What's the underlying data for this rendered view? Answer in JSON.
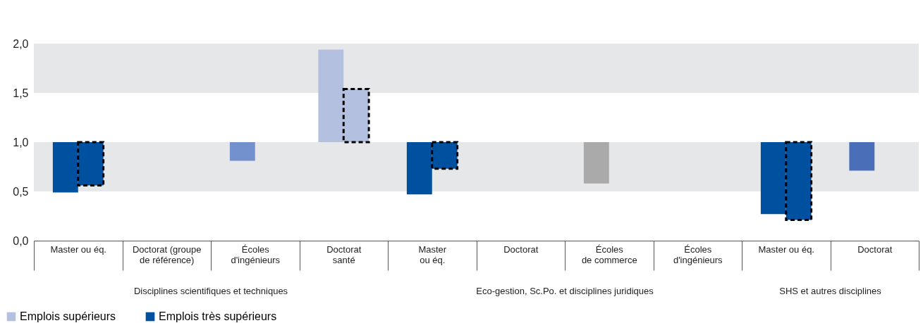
{
  "chart_data": {
    "type": "bar",
    "categories": [
      "Master ou éq.",
      "Doctorat (groupe\nde référence)",
      "Écoles\nd'ingénieurs",
      "Doctorat\nsanté",
      "Master\nou éq.",
      "Doctorat",
      "Écoles\nde commerce",
      "Écoles\nd'ingénieurs",
      "Master ou éq.",
      "Doctorat"
    ],
    "series": [
      {
        "name": "Emplois supérieurs",
        "color": "#b4c0e0",
        "base": [
          1,
          null,
          1,
          1,
          1,
          null,
          1,
          null,
          1,
          1
        ],
        "colors": [
          "#0050a0",
          null,
          "#7391cc",
          "#b4c0e0",
          "#0050a0",
          null,
          "#aaaaaa",
          null,
          "#0050a0",
          "#4a6fb8"
        ],
        "values": [
          -0.51,
          null,
          -0.19,
          0.94,
          -0.53,
          null,
          -0.42,
          null,
          -0.73,
          -0.29
        ]
      },
      {
        "name": "Emplois très supérieurs",
        "color": "#0050a0",
        "base": [
          1,
          null,
          null,
          1,
          1,
          null,
          null,
          null,
          1,
          null
        ],
        "colors": [
          "#0050a0",
          null,
          null,
          "#b4c0e0",
          "#0050a0",
          null,
          null,
          null,
          "#0050a0",
          null
        ],
        "values": [
          -0.44,
          null,
          null,
          0.54,
          -0.27,
          null,
          null,
          null,
          -0.79,
          null
        ]
      }
    ],
    "ylim": [
      0,
      2
    ],
    "yticks": [
      {
        "value": 0,
        "label": "0,0"
      },
      {
        "value": 0.5,
        "label": "0,5"
      },
      {
        "value": 1,
        "label": "1,0"
      },
      {
        "value": 1.5,
        "label": "1,5"
      },
      {
        "value": 2,
        "label": "2,0"
      }
    ],
    "bands": [
      {
        "axis": "y",
        "from": 0.5,
        "to": 1.0,
        "color": "#e6e7e9"
      },
      {
        "axis": "y",
        "from": 1.5,
        "to": 2.0,
        "color": "#e6e7e9"
      }
    ],
    "annotations": [
      "Disciplines scientifiques et techniques",
      "Eco-gestion, Sc.Po. et disciplines juridiques",
      "SHS et autres disciplines"
    ],
    "grid": false,
    "legend": "bottom left"
  }
}
